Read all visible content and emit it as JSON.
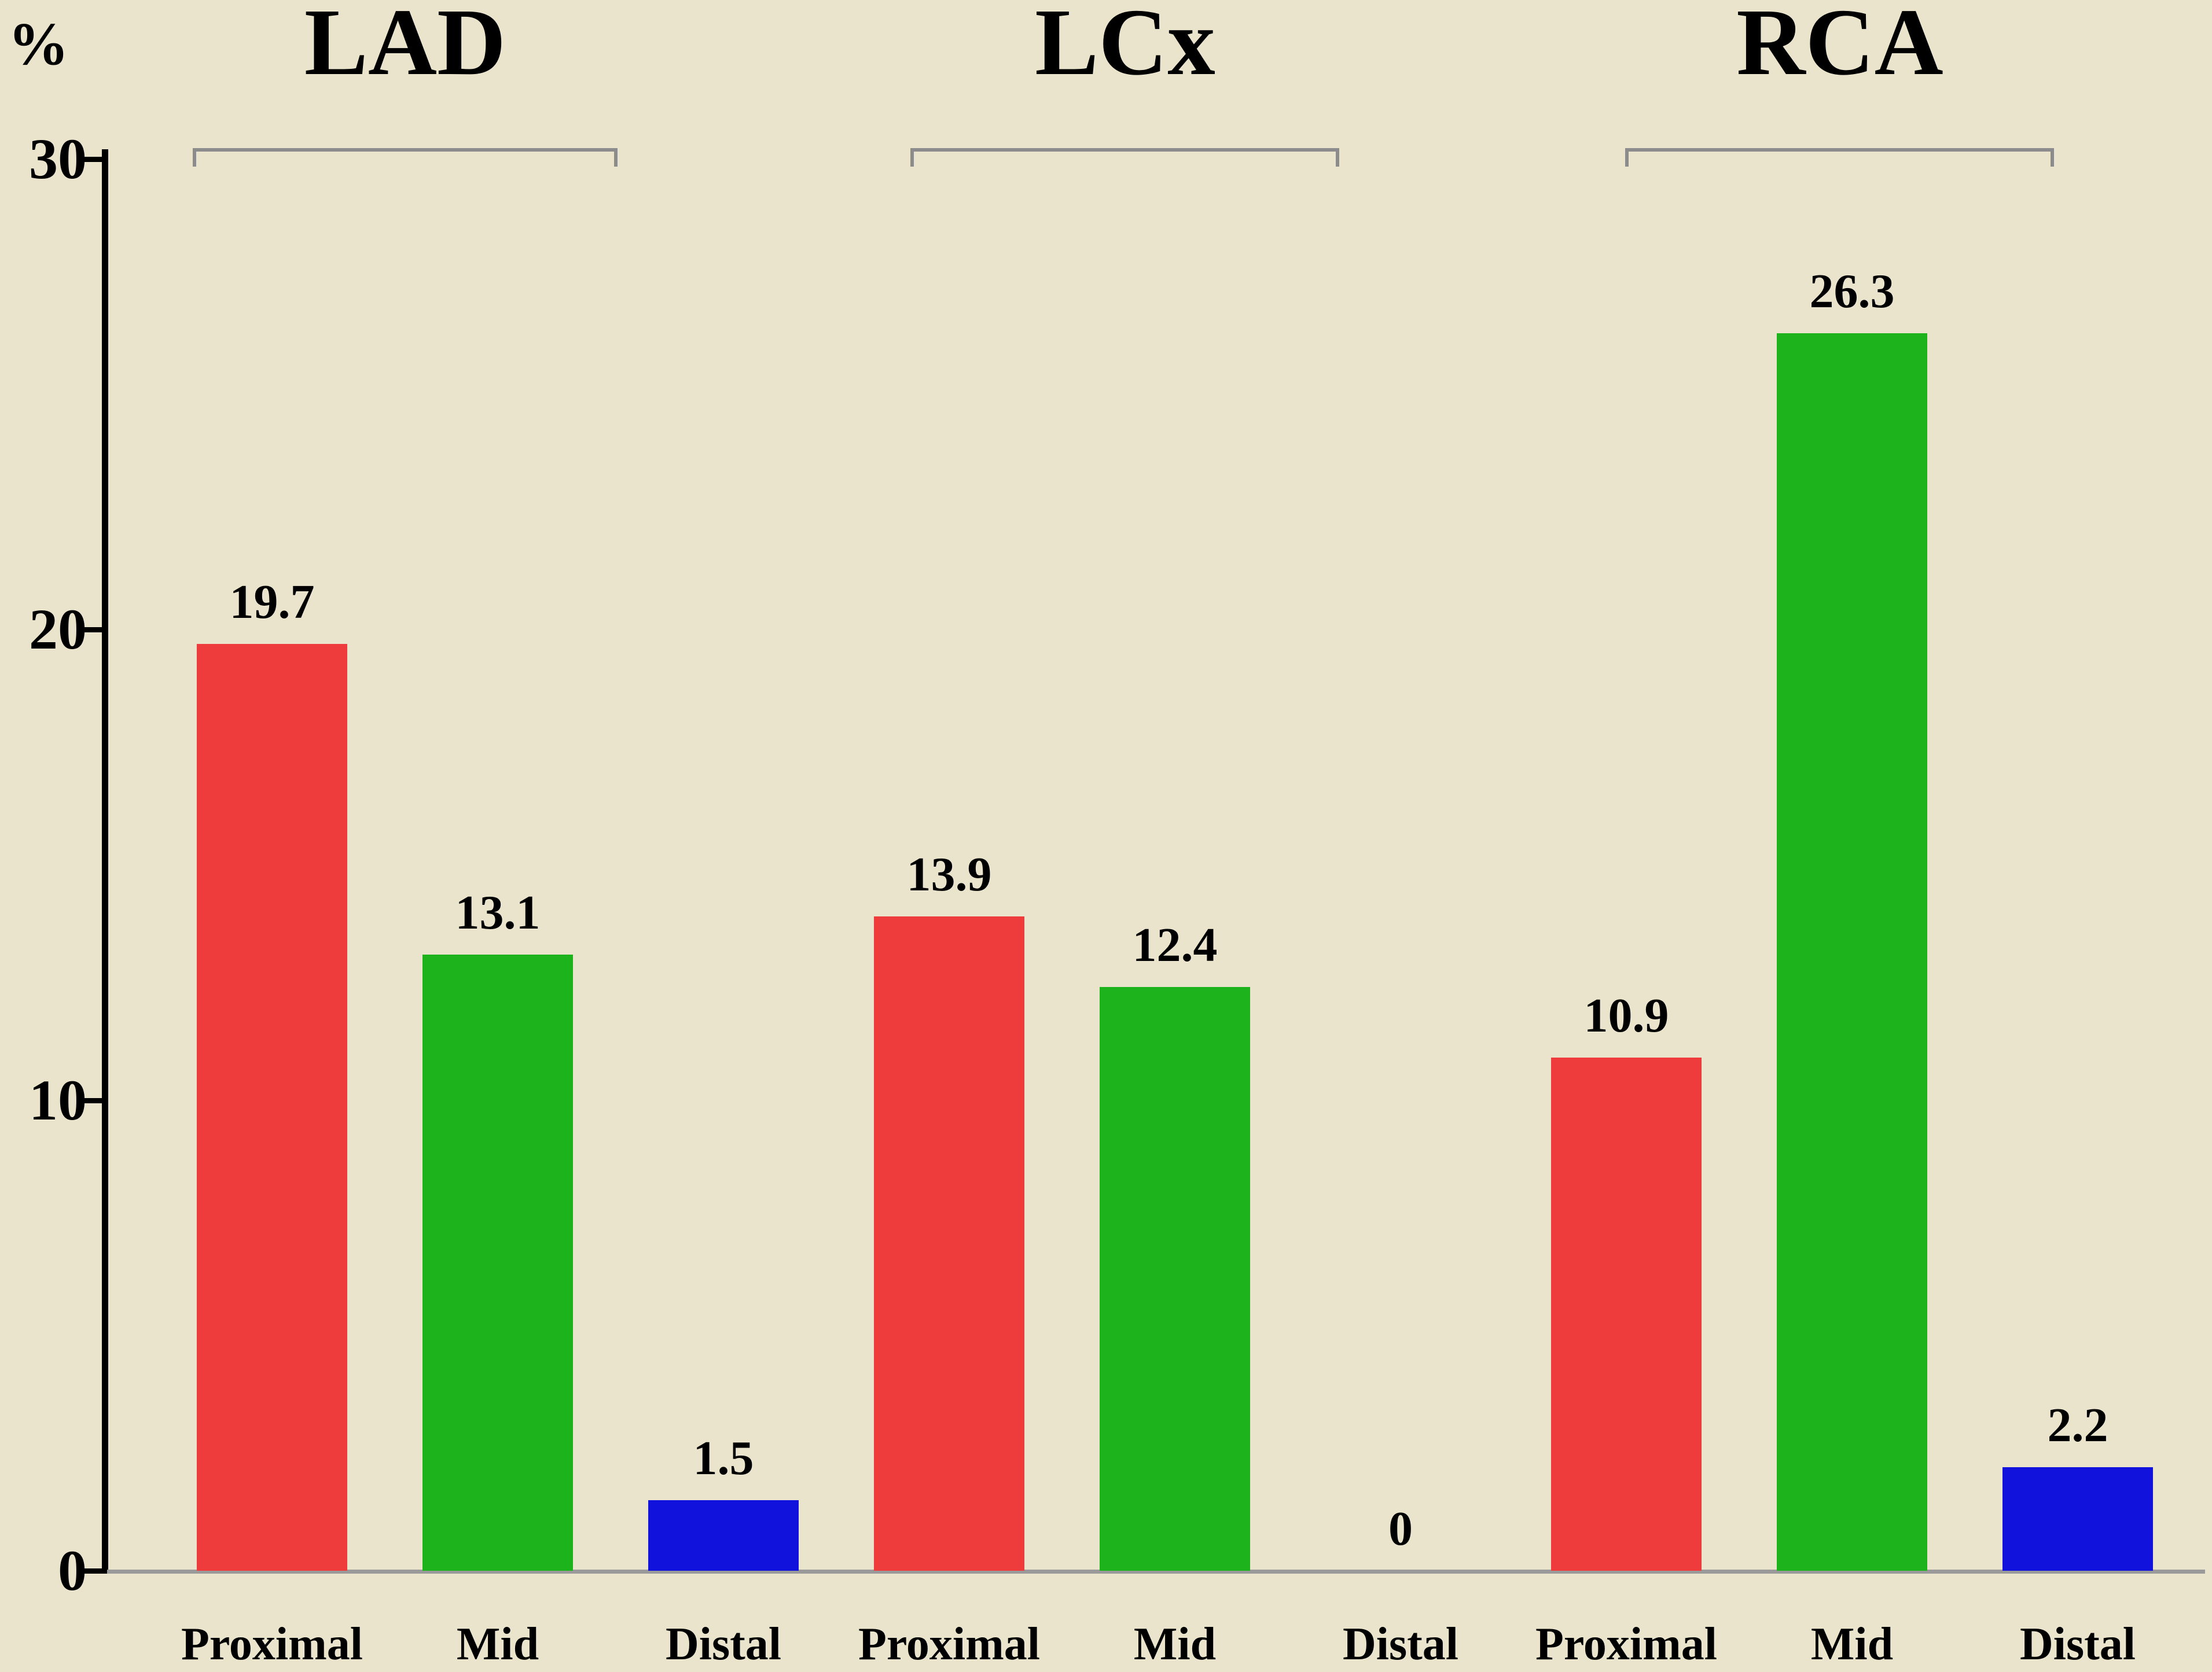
{
  "chart_data": {
    "type": "bar",
    "title": "",
    "ylabel": "%",
    "ylim": [
      0,
      30
    ],
    "yticks": [
      0,
      10,
      20,
      30
    ],
    "grid": false,
    "legend": "none",
    "background": "#eae4cd",
    "axis_color": "#000000",
    "baseline_color": "#9a9a9a",
    "bracket_color": "#8c8c8c",
    "groups": [
      {
        "name": "LAD",
        "bars": [
          {
            "category": "Proximal",
            "value": 19.7,
            "label": "19.7",
            "color": "#ee3b3b"
          },
          {
            "category": "Mid",
            "value": 13.1,
            "label": "13.1",
            "color": "#1db31d"
          },
          {
            "category": "Distal",
            "value": 1.5,
            "label": "1.5",
            "color": "#1212dd"
          }
        ]
      },
      {
        "name": "LCx",
        "bars": [
          {
            "category": "Proximal",
            "value": 13.9,
            "label": "13.9",
            "color": "#ee3b3b"
          },
          {
            "category": "Mid",
            "value": 12.4,
            "label": "12.4",
            "color": "#1db31d"
          },
          {
            "category": "Distal",
            "value": 0,
            "label": "0",
            "color": "#1212dd"
          }
        ]
      },
      {
        "name": "RCA",
        "bars": [
          {
            "category": "Proximal",
            "value": 10.9,
            "label": "10.9",
            "color": "#ee3b3b"
          },
          {
            "category": "Mid",
            "value": 26.3,
            "label": "26.3",
            "color": "#1db31d"
          },
          {
            "category": "Distal",
            "value": 2.2,
            "label": "2.2",
            "color": "#1212dd"
          }
        ]
      }
    ]
  }
}
